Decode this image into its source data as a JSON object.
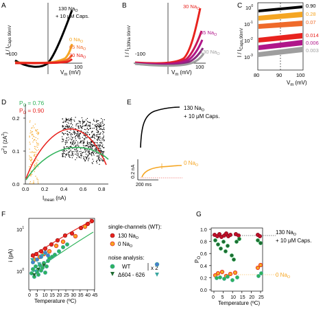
{
  "colors": {
    "black": "#000000",
    "orange": "#f5a623",
    "orange_red": "#ef6a2a",
    "red": "#e8231e",
    "crimson": "#c8185a",
    "magenta": "#b0168a",
    "purple": "#8a2a7e",
    "gray": "#9e9e9e",
    "green": "#2fb35a",
    "dark_green": "#1f6b33",
    "teal": "#3aa6a0",
    "blue": "#4a7bd0"
  },
  "panels": {
    "A": {
      "letter": "A",
      "ylabel": "I / I",
      "ylabel_sub": "Caps 90mV",
      "xlabel": "V",
      "xlabel_sub": "m",
      "xunit": "(mV)",
      "tick_left": "-100",
      "tick_right": "100",
      "series": [
        {
          "label": "130 Na",
          "sub": "O",
          "extra": "+ 10 μM Caps.",
          "color": "#000000"
        },
        {
          "label": "0 Na",
          "sub": "O",
          "color": "#f5a623"
        },
        {
          "label": "65 Na",
          "sub": "O",
          "color": "#ef6a2a"
        },
        {
          "label": "30 Na",
          "sub": "O",
          "color": "#e8231e"
        }
      ]
    },
    "B": {
      "letter": "B",
      "ylabel": "I / I",
      "ylabel_sub": "130Na 90mV",
      "xlabel": "V",
      "xlabel_sub": "m",
      "xunit": "(mV)",
      "tick_left": "-100",
      "tick_right": "100",
      "series": [
        {
          "label": "30 Na",
          "sub": "O",
          "color": "#e8231e"
        },
        {
          "label": "65 Na",
          "sub": "O",
          "color": "#b0168a"
        },
        {
          "label": "130 Na",
          "sub": "O",
          "color": "#9e9e9e"
        }
      ]
    },
    "C": {
      "letter": "C",
      "ylabel": "I / I",
      "ylabel_sub": "Caps,90mV",
      "xlabel": "V",
      "xlabel_sub": "m",
      "xunit": "(mV)",
      "yticks": [
        "10",
        "10",
        "10",
        "10"
      ],
      "yexp": [
        "0",
        "-1",
        "-2",
        "-3"
      ],
      "xticks": [
        "80",
        "90",
        "100"
      ],
      "values": [
        {
          "label": "0.90",
          "color": "#000000"
        },
        {
          "label": "0.28",
          "color": "#f5a623"
        },
        {
          "label": "0.07",
          "color": "#ef6a2a"
        },
        {
          "label": "0.014",
          "color": "#e8231e"
        },
        {
          "label": "0.006",
          "color": "#b0168a"
        },
        {
          "label": "0.003",
          "color": "#9e9e9e"
        }
      ]
    },
    "D": {
      "letter": "D",
      "po1": "P",
      "po1_sub": "O",
      "po1_val": "= 0.76",
      "po2": "P",
      "po2_sub": "O",
      "po2_val": "= 0.90",
      "ylabel": "σ",
      "ylabel_sup": "2",
      "ylabel_rest": "I",
      "yunit": "(zA",
      "yunit_sup": "2",
      "yunit_end": ")",
      "yticks": [
        "0.0",
        "0.1",
        "0.2"
      ],
      "xticks": [
        "0.0",
        "0.2",
        "0.4",
        "0.6",
        "0.8"
      ],
      "xlabel": "I",
      "xlabel_sub": "mean",
      "xunit": "(nA)"
    },
    "E": {
      "letter": "E",
      "label1": "130 Na",
      "label1_sub": "O",
      "label1_extra": "+ 10 μM Caps.",
      "label2": "0 Na",
      "label2_sub": "O",
      "scale_y": "0.2 nA",
      "scale_x": "200 ms"
    },
    "F": {
      "letter": "F",
      "ylabel": "i (pA)",
      "ytick1": "10",
      "ytick1_exp": "0",
      "ytick2": "10",
      "ytick2_exp": "1",
      "xticks": [
        "0",
        "5",
        "10",
        "15",
        "20",
        "25",
        "30",
        "35",
        "40",
        "45"
      ],
      "xlabel": "Temperature (ºC)",
      "legend_title": "single-channels (WT):",
      "legend_sc1": "130 Na",
      "legend_sc1_sub": "O",
      "legend_sc2": "0 Na",
      "legend_sc2_sub": "O",
      "legend_noise": "noise analysis:",
      "legend_wt": "WT",
      "legend_del": "Δ604 - 626",
      "legend_x2": "x 2"
    },
    "G": {
      "letter": "G",
      "ylabel": "P",
      "ylabel_sub": "O",
      "yticks": [
        "0.0",
        "0.2",
        "0.4",
        "0.6",
        "0.8",
        "1.0"
      ],
      "xticks": [
        "0",
        "5",
        "10",
        "15",
        "20",
        "25"
      ],
      "xlabel": "Temperature (ºC)",
      "label1": "130 Na",
      "label1_sub": "O",
      "label1_extra": "+ 10 μM Caps.",
      "label2": "0 Na",
      "label2_sub": "O"
    }
  }
}
